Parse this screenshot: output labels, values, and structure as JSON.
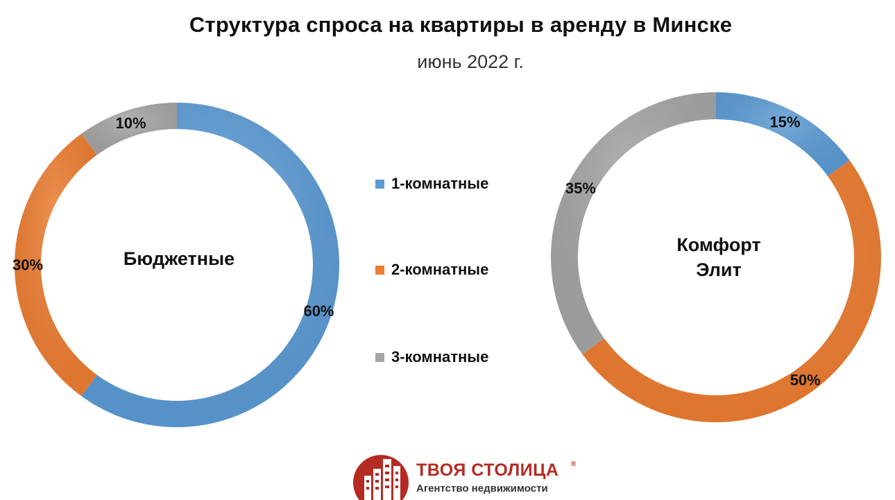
{
  "chart_data": {
    "type": "donut",
    "title": "Структура спроса на квартиры в аренду в Минске",
    "subtitle": "июнь 2022 г.",
    "legend_position": "center",
    "categories": [
      "1-комнатные",
      "2-комнатные",
      "3-комнатные"
    ],
    "colors": [
      "#5b9bd5",
      "#ed7d31",
      "#a5a5a5"
    ],
    "charts": [
      {
        "name_lines": [
          "Бюджетные"
        ],
        "values": [
          60,
          30,
          10
        ],
        "labels": [
          "60%",
          "30%",
          "10%"
        ]
      },
      {
        "name_lines": [
          "Комфорт",
          "Элит"
        ],
        "values": [
          15,
          50,
          35
        ],
        "labels": [
          "15%",
          "50%",
          "35%"
        ]
      }
    ]
  },
  "logo": {
    "name": "ТВОЯ СТОЛИЦА",
    "registered": "®",
    "tagline": "Агентство недвижимости",
    "color": "#b42b23"
  }
}
